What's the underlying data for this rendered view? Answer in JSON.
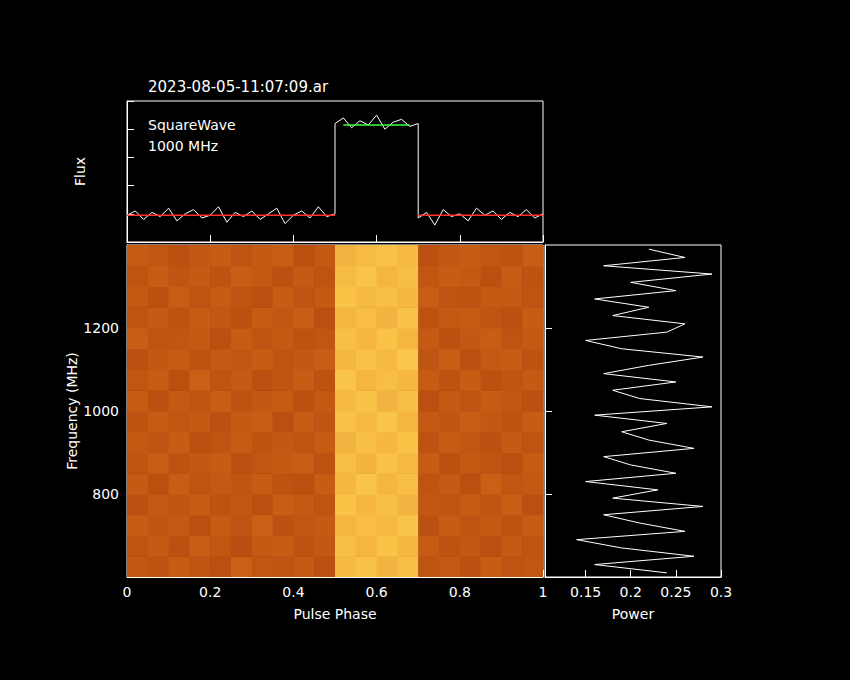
{
  "chart_data": [
    {
      "type": "line",
      "title": "2023-08-05-11:07:09.ar",
      "annotations": [
        "SquareWave",
        "1000 MHz"
      ],
      "y_label": "Flux",
      "x": [
        0,
        0.02,
        0.04,
        0.06,
        0.08,
        0.1,
        0.12,
        0.14,
        0.16,
        0.18,
        0.2,
        0.22,
        0.24,
        0.26,
        0.28,
        0.3,
        0.32,
        0.34,
        0.36,
        0.38,
        0.4,
        0.42,
        0.44,
        0.46,
        0.48,
        0.5,
        0.5,
        0.52,
        0.54,
        0.56,
        0.58,
        0.6,
        0.62,
        0.64,
        0.66,
        0.68,
        0.7,
        0.7,
        0.72,
        0.74,
        0.76,
        0.78,
        0.8,
        0.82,
        0.84,
        0.86,
        0.88,
        0.9,
        0.92,
        0.94,
        0.96,
        0.98,
        1
      ],
      "values": [
        0.19,
        0.22,
        0.16,
        0.21,
        0.18,
        0.24,
        0.15,
        0.2,
        0.23,
        0.17,
        0.19,
        0.25,
        0.14,
        0.21,
        0.18,
        0.22,
        0.16,
        0.2,
        0.24,
        0.13,
        0.19,
        0.22,
        0.17,
        0.25,
        0.18,
        0.2,
        0.84,
        0.88,
        0.81,
        0.86,
        0.83,
        0.9,
        0.8,
        0.85,
        0.87,
        0.82,
        0.84,
        0.17,
        0.21,
        0.12,
        0.23,
        0.18,
        0.2,
        0.15,
        0.24,
        0.19,
        0.22,
        0.16,
        0.21,
        0.18,
        0.23,
        0.17,
        0.2
      ],
      "color": "#ffffff",
      "levels": [
        {
          "value": 0.19,
          "xlim": [
            0,
            0.5
          ],
          "color": "#ff3030"
        },
        {
          "value": 0.19,
          "xlim": [
            0.7,
            1
          ],
          "color": "#ff3030"
        },
        {
          "value": 0.83,
          "xlim": [
            0.52,
            0.68
          ],
          "color": "#40ff40"
        }
      ],
      "xlim": [
        0,
        1
      ],
      "xticks": [
        0,
        0.2,
        0.4,
        0.6,
        0.8,
        1
      ],
      "ylim": [
        0,
        1
      ],
      "yticks": [
        0,
        0.2,
        0.4,
        0.6,
        0.8,
        1
      ],
      "tick_labels": false
    },
    {
      "type": "heatmap",
      "x_label": "Pulse Phase",
      "y_label": "Frequency (MHz)",
      "x_edges": [
        0,
        0.05,
        0.1,
        0.15,
        0.2,
        0.25,
        0.3,
        0.35,
        0.4,
        0.45,
        0.5,
        0.55,
        0.6,
        0.65,
        0.7,
        0.75,
        0.8,
        0.85,
        0.9,
        0.95,
        1
      ],
      "y_edges": [
        600,
        650,
        700,
        750,
        800,
        850,
        900,
        950,
        1000,
        1050,
        1100,
        1150,
        1200,
        1250,
        1300,
        1350,
        1400
      ],
      "cells": [
        [
          0.32,
          0.28,
          0.35,
          0.3,
          0.26,
          0.38,
          0.31,
          0.29,
          0.34,
          0.27,
          0.88,
          0.92,
          0.85,
          0.9,
          0.3,
          0.33,
          0.27,
          0.36,
          0.29,
          0.31
        ],
        [
          0.29,
          0.34,
          0.27,
          0.37,
          0.31,
          0.25,
          0.33,
          0.36,
          0.28,
          0.32,
          0.91,
          0.86,
          0.93,
          0.87,
          0.35,
          0.28,
          0.32,
          0.26,
          0.34,
          0.3
        ],
        [
          0.36,
          0.3,
          0.33,
          0.26,
          0.35,
          0.29,
          0.38,
          0.27,
          0.31,
          0.34,
          0.86,
          0.9,
          0.88,
          0.94,
          0.27,
          0.36,
          0.3,
          0.33,
          0.28,
          0.35
        ],
        [
          0.27,
          0.33,
          0.3,
          0.35,
          0.28,
          0.32,
          0.26,
          0.37,
          0.33,
          0.29,
          0.93,
          0.87,
          0.91,
          0.85,
          0.32,
          0.29,
          0.35,
          0.3,
          0.37,
          0.26
        ],
        [
          0.34,
          0.26,
          0.37,
          0.29,
          0.33,
          0.3,
          0.35,
          0.28,
          0.26,
          0.36,
          0.87,
          0.94,
          0.86,
          0.9,
          0.29,
          0.34,
          0.26,
          0.38,
          0.31,
          0.33
        ],
        [
          0.3,
          0.37,
          0.28,
          0.32,
          0.36,
          0.27,
          0.31,
          0.34,
          0.37,
          0.28,
          0.9,
          0.85,
          0.92,
          0.88,
          0.36,
          0.27,
          0.33,
          0.29,
          0.26,
          0.35
        ],
        [
          0.33,
          0.29,
          0.36,
          0.27,
          0.3,
          0.35,
          0.28,
          0.32,
          0.29,
          0.35,
          0.85,
          0.91,
          0.87,
          0.93,
          0.28,
          0.35,
          0.31,
          0.27,
          0.34,
          0.29
        ],
        [
          0.28,
          0.35,
          0.31,
          0.34,
          0.27,
          0.33,
          0.37,
          0.26,
          0.35,
          0.3,
          0.92,
          0.88,
          0.94,
          0.86,
          0.33,
          0.3,
          0.37,
          0.32,
          0.28,
          0.36
        ],
        [
          0.35,
          0.27,
          0.33,
          0.3,
          0.37,
          0.28,
          0.32,
          0.35,
          0.27,
          0.33,
          0.88,
          0.93,
          0.85,
          0.91,
          0.26,
          0.34,
          0.29,
          0.35,
          0.32,
          0.27
        ],
        [
          0.31,
          0.36,
          0.26,
          0.38,
          0.29,
          0.34,
          0.27,
          0.3,
          0.36,
          0.28,
          0.94,
          0.86,
          0.9,
          0.87,
          0.35,
          0.28,
          0.36,
          0.27,
          0.3,
          0.34
        ],
        [
          0.26,
          0.32,
          0.35,
          0.28,
          0.34,
          0.31,
          0.36,
          0.29,
          0.32,
          0.37,
          0.87,
          0.92,
          0.88,
          0.95,
          0.3,
          0.37,
          0.27,
          0.33,
          0.36,
          0.28
        ],
        [
          0.37,
          0.29,
          0.31,
          0.33,
          0.26,
          0.36,
          0.3,
          0.34,
          0.28,
          0.31,
          0.91,
          0.87,
          0.93,
          0.86,
          0.34,
          0.26,
          0.32,
          0.37,
          0.29,
          0.33
        ],
        [
          0.3,
          0.34,
          0.28,
          0.36,
          0.32,
          0.27,
          0.35,
          0.31,
          0.37,
          0.26,
          0.86,
          0.9,
          0.85,
          0.92,
          0.28,
          0.33,
          0.35,
          0.3,
          0.27,
          0.36
        ],
        [
          0.33,
          0.27,
          0.37,
          0.29,
          0.35,
          0.3,
          0.26,
          0.36,
          0.3,
          0.34,
          0.93,
          0.88,
          0.91,
          0.87,
          0.37,
          0.29,
          0.28,
          0.34,
          0.33,
          0.3
        ],
        [
          0.29,
          0.36,
          0.3,
          0.34,
          0.28,
          0.37,
          0.33,
          0.27,
          0.34,
          0.29,
          0.89,
          0.94,
          0.86,
          0.9,
          0.31,
          0.36,
          0.33,
          0.26,
          0.35,
          0.28
        ],
        [
          0.35,
          0.31,
          0.27,
          0.32,
          0.36,
          0.29,
          0.34,
          0.37,
          0.26,
          0.33,
          0.85,
          0.89,
          0.92,
          0.88,
          0.27,
          0.32,
          0.36,
          0.31,
          0.28,
          0.37
        ]
      ],
      "crange": [
        0,
        1
      ],
      "color": [
        "#9a2c06",
        "#d8701a",
        "#ffd050"
      ],
      "xlim": [
        0,
        1
      ],
      "xticks": [
        0,
        0.2,
        0.4,
        0.6,
        0.8,
        1
      ],
      "ylim": [
        600,
        1400
      ],
      "yticks": [
        800,
        1000,
        1200
      ]
    },
    {
      "type": "line",
      "x_label": "Power",
      "x": [
        0.24,
        0.16,
        0.27,
        0.19,
        0.14,
        0.26,
        0.21,
        0.17,
        0.28,
        0.18,
        0.23,
        0.15,
        0.25,
        0.2,
        0.17,
        0.27,
        0.22,
        0.19,
        0.24,
        0.16,
        0.29,
        0.21,
        0.18,
        0.25,
        0.17,
        0.22,
        0.28,
        0.19,
        0.15,
        0.24,
        0.26,
        0.18,
        0.22,
        0.16,
        0.25,
        0.2,
        0.29,
        0.17,
        0.26,
        0.22
      ],
      "y": [
        610,
        630,
        650,
        670,
        690,
        710,
        730,
        750,
        770,
        790,
        810,
        830,
        850,
        870,
        890,
        910,
        930,
        950,
        970,
        990,
        1010,
        1030,
        1050,
        1070,
        1090,
        1110,
        1130,
        1150,
        1170,
        1190,
        1210,
        1230,
        1250,
        1270,
        1290,
        1310,
        1330,
        1350,
        1370,
        1390
      ],
      "color": "#ffffff",
      "xlim": [
        0.105,
        0.3
      ],
      "xticks": [
        0.15,
        0.2,
        0.25,
        0.3
      ],
      "ylim": [
        600,
        1400
      ],
      "yticks": [
        800,
        1000,
        1200
      ],
      "tick_labels": "x"
    }
  ]
}
